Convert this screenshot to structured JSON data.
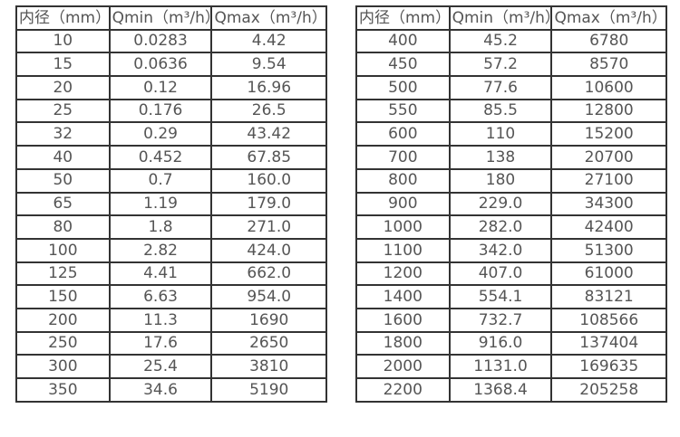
{
  "tables": [
    {
      "name": "diameter-flow-table-small",
      "headers": [
        "内径（mm）",
        "Qmin（m³/h）",
        "Qmax（m³/h）"
      ],
      "rows": [
        [
          "10",
          "0.0283",
          "4.42"
        ],
        [
          "15",
          "0.0636",
          "9.54"
        ],
        [
          "20",
          "0.12",
          "16.96"
        ],
        [
          "25",
          "0.176",
          "26.5"
        ],
        [
          "32",
          "0.29",
          "43.42"
        ],
        [
          "40",
          "0.452",
          "67.85"
        ],
        [
          "50",
          "0.7",
          "160.0"
        ],
        [
          "65",
          "1.19",
          "179.0"
        ],
        [
          "80",
          "1.8",
          "271.0"
        ],
        [
          "100",
          "2.82",
          "424.0"
        ],
        [
          "125",
          "4.41",
          "662.0"
        ],
        [
          "150",
          "6.63",
          "954.0"
        ],
        [
          "200",
          "11.3",
          "1690"
        ],
        [
          "250",
          "17.6",
          "2650"
        ],
        [
          "300",
          "25.4",
          "3810"
        ],
        [
          "350",
          "34.6",
          "5190"
        ]
      ]
    },
    {
      "name": "diameter-flow-table-large",
      "headers": [
        "内径（mm）",
        "Qmin（m³/h）",
        "Qmax（m³/h）"
      ],
      "rows": [
        [
          "400",
          "45.2",
          "6780"
        ],
        [
          "450",
          "57.2",
          "8570"
        ],
        [
          "500",
          "77.6",
          "10600"
        ],
        [
          "550",
          "85.5",
          "12800"
        ],
        [
          "600",
          "110",
          "15200"
        ],
        [
          "700",
          "138",
          "20700"
        ],
        [
          "800",
          "180",
          "27100"
        ],
        [
          "900",
          "229.0",
          "34300"
        ],
        [
          "1000",
          "282.0",
          "42400"
        ],
        [
          "1100",
          "342.0",
          "51300"
        ],
        [
          "1200",
          "407.0",
          "61000"
        ],
        [
          "1400",
          "554.1",
          "83121"
        ],
        [
          "1600",
          "732.7",
          "108566"
        ],
        [
          "1800",
          "916.0",
          "137404"
        ],
        [
          "2000",
          "1131.0",
          "169635"
        ],
        [
          "2200",
          "1368.4",
          "205258"
        ]
      ]
    }
  ],
  "colors": {
    "border": "#333333",
    "text": "#555555",
    "background": "#ffffff"
  }
}
